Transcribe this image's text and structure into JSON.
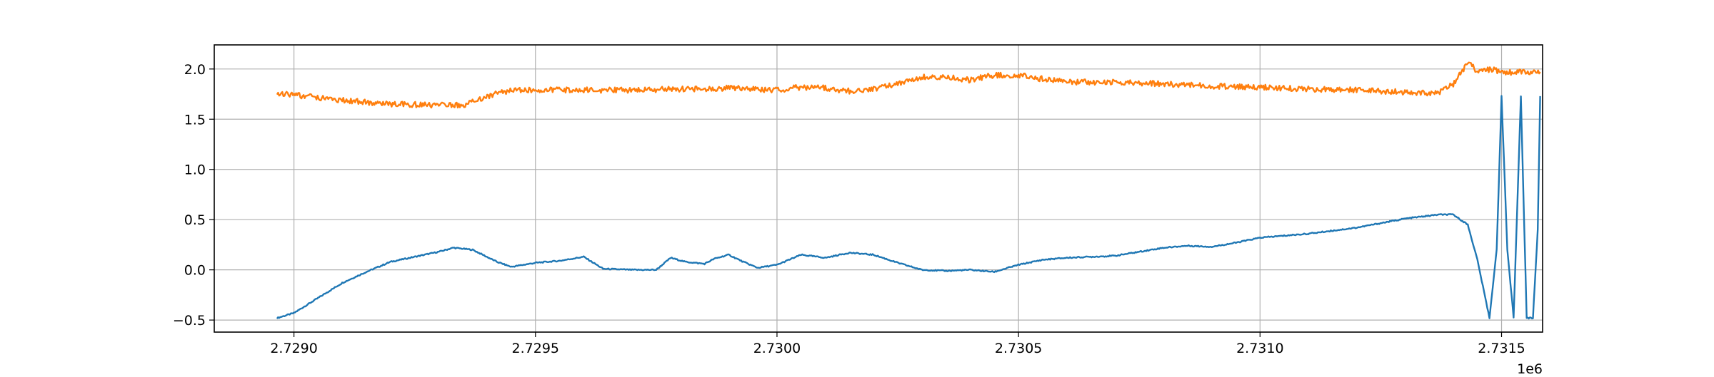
{
  "chart_data": {
    "type": "line",
    "title": "",
    "xlabel": "",
    "ylabel": "",
    "x_offset_label": "1e6",
    "xlim": [
      2728835,
      2731585
    ],
    "ylim": [
      -0.62,
      2.24
    ],
    "xticks": [
      {
        "value": 2729000,
        "label": "2.7290"
      },
      {
        "value": 2729500,
        "label": "2.7295"
      },
      {
        "value": 2730000,
        "label": "2.7300"
      },
      {
        "value": 2730500,
        "label": "2.7305"
      },
      {
        "value": 2731000,
        "label": "2.7310"
      },
      {
        "value": 2731500,
        "label": "2.7315"
      }
    ],
    "yticks": [
      {
        "value": -0.5,
        "label": "−0.5"
      },
      {
        "value": 0.0,
        "label": "0.0"
      },
      {
        "value": 0.5,
        "label": "0.5"
      },
      {
        "value": 1.0,
        "label": "1.0"
      },
      {
        "value": 1.5,
        "label": "1.5"
      },
      {
        "value": 2.0,
        "label": "2.0"
      }
    ],
    "grid": true,
    "series": [
      {
        "color": "#1f77b4",
        "x": [
          2728965,
          2729000,
          2729050,
          2729100,
          2729150,
          2729200,
          2729250,
          2729300,
          2729330,
          2729370,
          2729420,
          2729450,
          2729500,
          2729550,
          2729600,
          2729640,
          2729700,
          2729750,
          2729780,
          2729810,
          2729850,
          2729870,
          2729900,
          2729930,
          2729960,
          2730000,
          2730050,
          2730100,
          2730150,
          2730200,
          2730250,
          2730300,
          2730350,
          2730400,
          2730450,
          2730500,
          2730550,
          2730600,
          2730700,
          2730800,
          2730850,
          2730900,
          2730950,
          2731000,
          2731050,
          2731100,
          2731200,
          2731300,
          2731370,
          2731400,
          2731430,
          2731450,
          2731475,
          2731490,
          2731500,
          2731512,
          2731525,
          2731540,
          2731552,
          2731565,
          2731575,
          2731580
        ],
        "y": [
          -0.48,
          -0.43,
          -0.28,
          -0.13,
          -0.02,
          0.08,
          0.13,
          0.18,
          0.22,
          0.2,
          0.08,
          0.03,
          0.07,
          0.09,
          0.13,
          0.01,
          0.0,
          0.0,
          0.12,
          0.08,
          0.06,
          0.11,
          0.15,
          0.08,
          0.02,
          0.05,
          0.15,
          0.12,
          0.17,
          0.15,
          0.07,
          0.0,
          -0.01,
          0.0,
          -0.02,
          0.05,
          0.1,
          0.12,
          0.14,
          0.22,
          0.24,
          0.23,
          0.27,
          0.32,
          0.34,
          0.36,
          0.42,
          0.51,
          0.55,
          0.55,
          0.45,
          0.1,
          -0.48,
          0.2,
          1.73,
          0.2,
          -0.48,
          1.73,
          -0.48,
          -0.48,
          0.4,
          1.73
        ]
      },
      {
        "color": "#ff7f0e",
        "x": [
          2728965,
          2729000,
          2729100,
          2729200,
          2729300,
          2729350,
          2729400,
          2729450,
          2729500,
          2729600,
          2729700,
          2729800,
          2729900,
          2730000,
          2730050,
          2730100,
          2730150,
          2730200,
          2730250,
          2730300,
          2730350,
          2730400,
          2730450,
          2730500,
          2730550,
          2730600,
          2730700,
          2730800,
          2730900,
          2731000,
          2731100,
          2731200,
          2731300,
          2731370,
          2731400,
          2731430,
          2731450,
          2731480,
          2731500,
          2731550,
          2731580
        ],
        "y": [
          1.76,
          1.74,
          1.69,
          1.65,
          1.64,
          1.64,
          1.73,
          1.79,
          1.79,
          1.79,
          1.79,
          1.8,
          1.81,
          1.79,
          1.82,
          1.81,
          1.78,
          1.8,
          1.86,
          1.92,
          1.92,
          1.89,
          1.94,
          1.94,
          1.9,
          1.87,
          1.87,
          1.85,
          1.83,
          1.82,
          1.8,
          1.79,
          1.77,
          1.76,
          1.85,
          2.06,
          1.98,
          2.0,
          1.96,
          1.97,
          1.97
        ]
      }
    ]
  }
}
